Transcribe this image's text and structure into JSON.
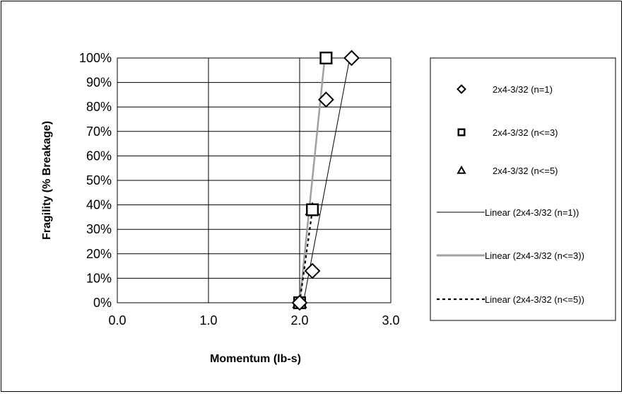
{
  "chart_data": {
    "type": "scatter",
    "title": "",
    "xlabel": "Momentum (lb-s)",
    "ylabel": "Fragility (% Breakage)",
    "xlim": [
      0.0,
      3.0
    ],
    "ylim": [
      0,
      100
    ],
    "x_ticks": [
      "0.0",
      "1.0",
      "2.0",
      "3.0"
    ],
    "y_ticks": [
      "0%",
      "10%",
      "20%",
      "30%",
      "40%",
      "50%",
      "60%",
      "70%",
      "80%",
      "90%",
      "100%"
    ],
    "grid": true,
    "legend_position": "right",
    "series": [
      {
        "name": "2x4-3/32 (n=1)",
        "marker": "diamond",
        "color": "#000000",
        "points": [
          {
            "x": 2.0,
            "y": 0
          },
          {
            "x": 2.14,
            "y": 13
          },
          {
            "x": 2.29,
            "y": 83
          },
          {
            "x": 2.57,
            "y": 100
          }
        ]
      },
      {
        "name": "2x4-3/32 (n<=3)",
        "marker": "square",
        "color": "#000000",
        "points": [
          {
            "x": 2.0,
            "y": 0
          },
          {
            "x": 2.14,
            "y": 38
          },
          {
            "x": 2.29,
            "y": 100
          }
        ]
      },
      {
        "name": "2x4-3/32 (n<=5)",
        "marker": "triangle",
        "color": "#000000",
        "points": [
          {
            "x": 2.0,
            "y": 0
          },
          {
            "x": 2.14,
            "y": 38
          }
        ]
      }
    ],
    "trendlines": [
      {
        "name": "Linear (2x4-3/32 (n=1))",
        "style": "solid",
        "color": "#000000",
        "from": {
          "x": 2.04,
          "y": 0
        },
        "to": {
          "x": 2.55,
          "y": 100
        }
      },
      {
        "name": "Linear (2x4-3/32 (n<=3))",
        "style": "solid-gray",
        "color": "#a0a0a0",
        "from": {
          "x": 2.0,
          "y": 0
        },
        "to": {
          "x": 2.27,
          "y": 98
        }
      },
      {
        "name": "Linear (2x4-3/32 (n<=5))",
        "style": "dashed",
        "color": "#000000",
        "from": {
          "x": 2.0,
          "y": 0
        },
        "to": {
          "x": 2.14,
          "y": 38
        }
      }
    ]
  }
}
